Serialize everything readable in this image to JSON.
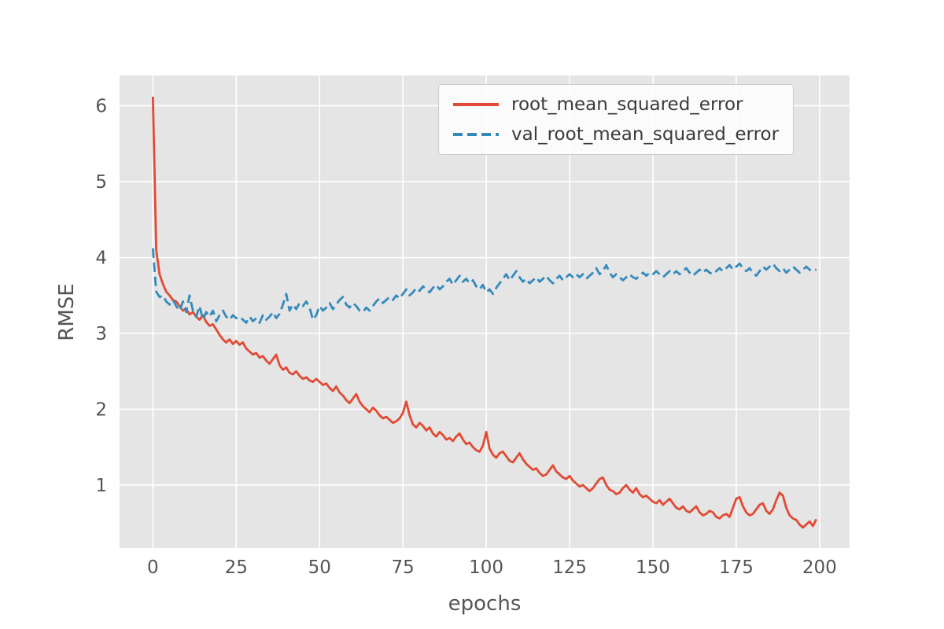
{
  "figure": {
    "background": "#ffffff",
    "axes_background": "#e5e5e5",
    "grid_color": "#ffffff",
    "tick_color": "#555555",
    "label_color": "#555555"
  },
  "chart_data": {
    "type": "line",
    "title": "",
    "xlabel": "epochs",
    "ylabel": "RMSE",
    "xlim": [
      -10,
      209
    ],
    "ylim": [
      0.17,
      6.4
    ],
    "xticks": [
      0,
      25,
      50,
      75,
      100,
      125,
      150,
      175,
      200
    ],
    "yticks": [
      1,
      2,
      3,
      4,
      5,
      6
    ],
    "grid": true,
    "legend_position": "upper right",
    "x": [
      0,
      1,
      2,
      3,
      4,
      5,
      6,
      7,
      8,
      9,
      10,
      11,
      12,
      13,
      14,
      15,
      16,
      17,
      18,
      19,
      20,
      21,
      22,
      23,
      24,
      25,
      26,
      27,
      28,
      29,
      30,
      31,
      32,
      33,
      34,
      35,
      36,
      37,
      38,
      39,
      40,
      41,
      42,
      43,
      44,
      45,
      46,
      47,
      48,
      49,
      50,
      51,
      52,
      53,
      54,
      55,
      56,
      57,
      58,
      59,
      60,
      61,
      62,
      63,
      64,
      65,
      66,
      67,
      68,
      69,
      70,
      71,
      72,
      73,
      74,
      75,
      76,
      77,
      78,
      79,
      80,
      81,
      82,
      83,
      84,
      85,
      86,
      87,
      88,
      89,
      90,
      91,
      92,
      93,
      94,
      95,
      96,
      97,
      98,
      99,
      100,
      101,
      102,
      103,
      104,
      105,
      106,
      107,
      108,
      109,
      110,
      111,
      112,
      113,
      114,
      115,
      116,
      117,
      118,
      119,
      120,
      121,
      122,
      123,
      124,
      125,
      126,
      127,
      128,
      129,
      130,
      131,
      132,
      133,
      134,
      135,
      136,
      137,
      138,
      139,
      140,
      141,
      142,
      143,
      144,
      145,
      146,
      147,
      148,
      149,
      150,
      151,
      152,
      153,
      154,
      155,
      156,
      157,
      158,
      159,
      160,
      161,
      162,
      163,
      164,
      165,
      166,
      167,
      168,
      169,
      170,
      171,
      172,
      173,
      174,
      175,
      176,
      177,
      178,
      179,
      180,
      181,
      182,
      183,
      184,
      185,
      186,
      187,
      188,
      189,
      190,
      191,
      192,
      193,
      194,
      195,
      196,
      197,
      198,
      199
    ],
    "series": [
      {
        "name": "root_mean_squared_error",
        "color": "#e24a33",
        "style": "solid",
        "values": [
          6.12,
          4.1,
          3.78,
          3.65,
          3.55,
          3.5,
          3.44,
          3.42,
          3.36,
          3.3,
          3.32,
          3.25,
          3.28,
          3.22,
          3.18,
          3.24,
          3.15,
          3.1,
          3.12,
          3.05,
          2.98,
          2.92,
          2.88,
          2.92,
          2.86,
          2.9,
          2.85,
          2.88,
          2.8,
          2.76,
          2.72,
          2.74,
          2.68,
          2.7,
          2.64,
          2.6,
          2.66,
          2.72,
          2.58,
          2.52,
          2.55,
          2.48,
          2.46,
          2.5,
          2.44,
          2.4,
          2.42,
          2.38,
          2.36,
          2.4,
          2.36,
          2.32,
          2.34,
          2.28,
          2.24,
          2.3,
          2.22,
          2.18,
          2.12,
          2.08,
          2.14,
          2.2,
          2.1,
          2.04,
          2.0,
          1.96,
          2.02,
          1.98,
          1.92,
          1.88,
          1.9,
          1.86,
          1.82,
          1.84,
          1.88,
          1.95,
          2.1,
          1.92,
          1.8,
          1.76,
          1.82,
          1.78,
          1.72,
          1.76,
          1.68,
          1.64,
          1.7,
          1.66,
          1.6,
          1.62,
          1.58,
          1.64,
          1.68,
          1.6,
          1.54,
          1.56,
          1.5,
          1.46,
          1.44,
          1.52,
          1.7,
          1.48,
          1.4,
          1.36,
          1.42,
          1.44,
          1.38,
          1.32,
          1.3,
          1.36,
          1.42,
          1.34,
          1.28,
          1.24,
          1.2,
          1.22,
          1.16,
          1.12,
          1.14,
          1.2,
          1.26,
          1.18,
          1.14,
          1.1,
          1.08,
          1.12,
          1.06,
          1.02,
          0.98,
          1.0,
          0.96,
          0.92,
          0.96,
          1.02,
          1.08,
          1.1,
          1.0,
          0.94,
          0.92,
          0.88,
          0.9,
          0.96,
          1.0,
          0.94,
          0.9,
          0.96,
          0.88,
          0.84,
          0.86,
          0.82,
          0.78,
          0.76,
          0.8,
          0.74,
          0.78,
          0.82,
          0.76,
          0.7,
          0.68,
          0.72,
          0.66,
          0.64,
          0.68,
          0.72,
          0.64,
          0.6,
          0.62,
          0.66,
          0.64,
          0.58,
          0.56,
          0.6,
          0.62,
          0.58,
          0.7,
          0.82,
          0.84,
          0.72,
          0.64,
          0.6,
          0.62,
          0.68,
          0.74,
          0.76,
          0.66,
          0.62,
          0.68,
          0.8,
          0.9,
          0.86,
          0.7,
          0.6,
          0.56,
          0.54,
          0.48,
          0.44,
          0.48,
          0.52,
          0.46,
          0.55
        ]
      },
      {
        "name": "val_root_mean_squared_error",
        "color": "#348abd",
        "style": "dashed",
        "values": [
          4.12,
          3.55,
          3.48,
          3.5,
          3.42,
          3.38,
          3.44,
          3.36,
          3.3,
          3.42,
          3.28,
          3.5,
          3.3,
          3.22,
          3.36,
          3.18,
          3.28,
          3.22,
          3.3,
          3.16,
          3.24,
          3.3,
          3.22,
          3.18,
          3.24,
          3.2,
          3.22,
          3.18,
          3.14,
          3.22,
          3.16,
          3.2,
          3.14,
          3.24,
          3.18,
          3.22,
          3.28,
          3.2,
          3.26,
          3.38,
          3.52,
          3.3,
          3.38,
          3.32,
          3.4,
          3.36,
          3.42,
          3.34,
          3.18,
          3.24,
          3.36,
          3.3,
          3.34,
          3.4,
          3.32,
          3.38,
          3.44,
          3.48,
          3.38,
          3.34,
          3.4,
          3.36,
          3.3,
          3.28,
          3.34,
          3.3,
          3.36,
          3.42,
          3.46,
          3.4,
          3.44,
          3.48,
          3.44,
          3.5,
          3.46,
          3.52,
          3.58,
          3.5,
          3.54,
          3.6,
          3.56,
          3.62,
          3.58,
          3.54,
          3.6,
          3.64,
          3.58,
          3.62,
          3.68,
          3.72,
          3.64,
          3.7,
          3.76,
          3.68,
          3.72,
          3.66,
          3.7,
          3.62,
          3.58,
          3.64,
          3.54,
          3.58,
          3.52,
          3.6,
          3.66,
          3.72,
          3.78,
          3.7,
          3.76,
          3.82,
          3.74,
          3.68,
          3.72,
          3.66,
          3.7,
          3.74,
          3.68,
          3.72,
          3.76,
          3.7,
          3.66,
          3.72,
          3.76,
          3.7,
          3.74,
          3.78,
          3.74,
          3.78,
          3.74,
          3.78,
          3.72,
          3.76,
          3.8,
          3.86,
          3.78,
          3.82,
          3.9,
          3.8,
          3.74,
          3.78,
          3.74,
          3.7,
          3.74,
          3.78,
          3.74,
          3.72,
          3.76,
          3.8,
          3.76,
          3.8,
          3.78,
          3.82,
          3.78,
          3.74,
          3.78,
          3.82,
          3.78,
          3.82,
          3.78,
          3.82,
          3.86,
          3.8,
          3.76,
          3.8,
          3.84,
          3.8,
          3.84,
          3.8,
          3.78,
          3.82,
          3.86,
          3.82,
          3.86,
          3.9,
          3.84,
          3.88,
          3.92,
          3.86,
          3.82,
          3.86,
          3.8,
          3.76,
          3.82,
          3.88,
          3.84,
          3.88,
          3.92,
          3.86,
          3.82,
          3.86,
          3.8,
          3.84,
          3.88,
          3.84,
          3.8,
          3.84,
          3.88,
          3.84,
          3.82,
          3.84
        ]
      }
    ]
  }
}
